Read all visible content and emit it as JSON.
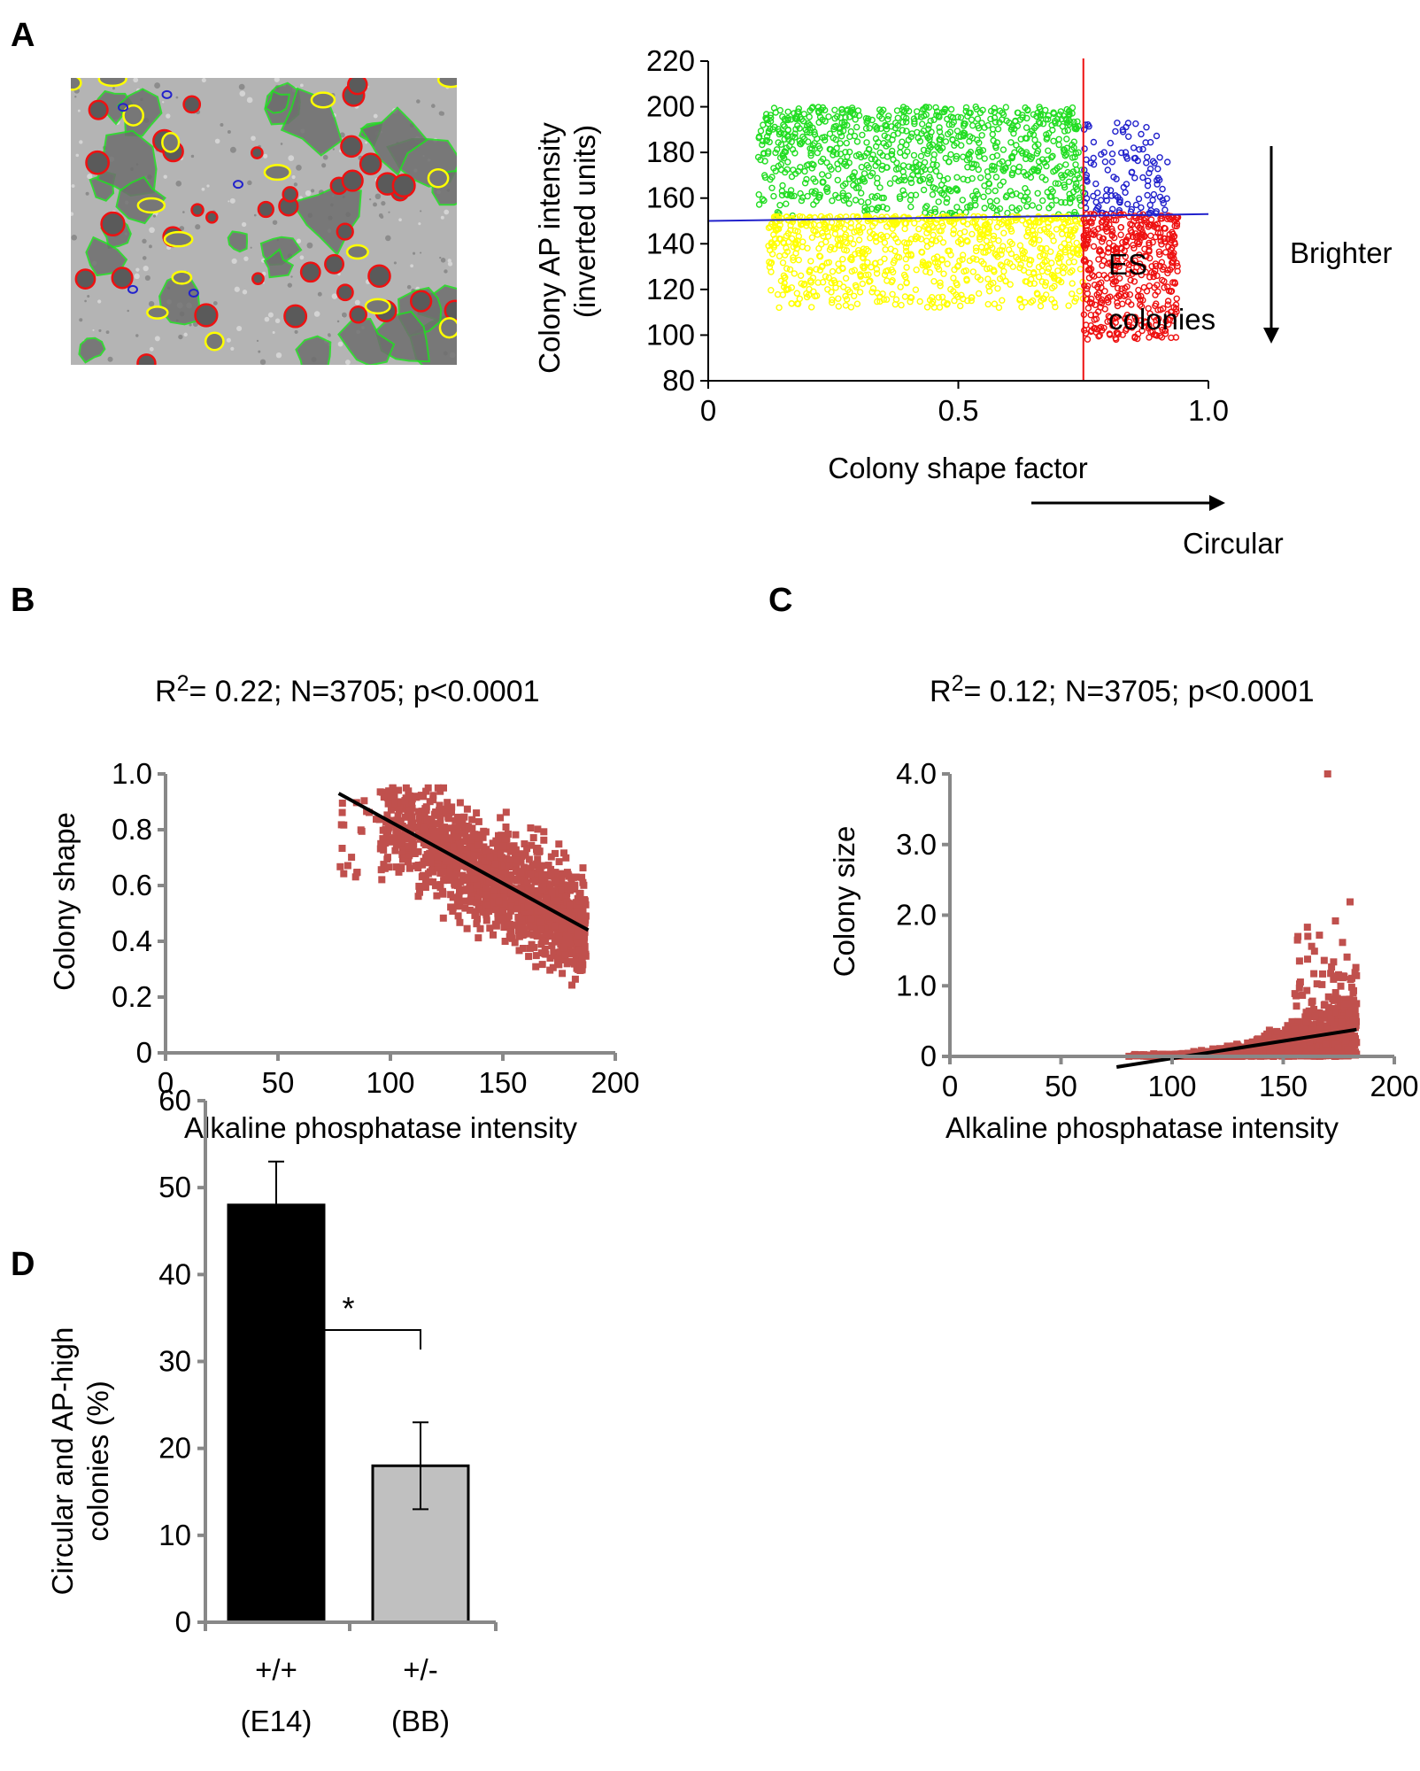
{
  "panel_labels": [
    "A",
    "B",
    "C",
    "D"
  ],
  "colors": {
    "green": "#22dd22",
    "yellow": "#ffff00",
    "blue": "#2222cc",
    "red": "#ee1111",
    "scatter_red": "#c0504d",
    "bar_black": "#000000",
    "bar_gray": "#c0c0c0"
  },
  "chart_data": [
    {
      "panel": "A",
      "type": "scatter",
      "xlabel": "Colony shape factor",
      "ylabel_line1": "Colony AP intensity",
      "ylabel_line2": "(inverted units)",
      "xlim": [
        0,
        1.0
      ],
      "ylim": [
        80,
        220
      ],
      "xticks": [
        "0",
        "0.5",
        "1.0"
      ],
      "yticks": [
        "80",
        "100",
        "120",
        "140",
        "160",
        "180",
        "200",
        "220"
      ],
      "shape_threshold": 0.75,
      "intensity_threshold_start": 150,
      "intensity_threshold_end": 153,
      "annotation_line1": "ES",
      "annotation_line2": "colonies",
      "right_arrow_label": "Brighter",
      "bottom_arrow_label": "Circular",
      "groups": [
        {
          "color": "green",
          "x_range": [
            0.1,
            0.75
          ],
          "y_range": [
            152,
            200
          ]
        },
        {
          "color": "yellow",
          "x_range": [
            0.12,
            0.75
          ],
          "y_range": [
            112,
            152
          ]
        },
        {
          "color": "blue",
          "x_range": [
            0.75,
            0.92
          ],
          "y_range": [
            153,
            195
          ]
        },
        {
          "color": "red",
          "x_range": [
            0.75,
            0.94
          ],
          "y_range": [
            98,
            153
          ]
        }
      ],
      "image": {
        "colonies": [
          {
            "type": "red"
          },
          {
            "type": "green"
          },
          {
            "type": "yellow"
          },
          {
            "type": "blue"
          }
        ]
      }
    },
    {
      "panel": "B",
      "type": "scatter",
      "title_prefix": "R",
      "title_sup": "2",
      "title_rest": "= 0.22; N=3705; p<0.0001",
      "xlabel": "Alkaline phosphatase intensity",
      "ylabel": "Colony shape",
      "xlim": [
        0,
        200
      ],
      "ylim": [
        0,
        1.0
      ],
      "xticks": [
        "0",
        "50",
        "100",
        "150",
        "200"
      ],
      "yticks": [
        "0",
        "0.2",
        "0.4",
        "0.6",
        "0.8",
        "1.0"
      ],
      "trend": {
        "x": [
          77,
          188
        ],
        "y": [
          0.93,
          0.44
        ]
      },
      "n": 3705
    },
    {
      "panel": "C",
      "type": "scatter",
      "title_prefix": "R",
      "title_sup": "2",
      "title_rest": "= 0.12; N=3705; p<0.0001",
      "xlabel": "Alkaline phosphatase intensity",
      "ylabel": "Colony size",
      "xlim": [
        0,
        200
      ],
      "ylim": [
        0,
        4.0
      ],
      "xticks": [
        "0",
        "50",
        "100",
        "150",
        "200"
      ],
      "yticks": [
        "0",
        "1.0",
        "2.0",
        "3.0",
        "4.0"
      ],
      "trend": {
        "x": [
          75,
          183
        ],
        "y": [
          -0.15,
          0.38
        ]
      },
      "n": 3705
    },
    {
      "panel": "D",
      "type": "bar",
      "ylabel_line1": "Circular and AP-high",
      "ylabel_line2": "colonies (%)",
      "ylim": [
        0,
        60
      ],
      "yticks": [
        "0",
        "10",
        "20",
        "30",
        "40",
        "50",
        "60"
      ],
      "categories": [
        "+/+",
        "+/-"
      ],
      "category_sub": [
        "(E14)",
        "(BB)"
      ],
      "values": [
        48,
        18
      ],
      "errors": [
        5,
        5
      ],
      "bar_colors": [
        "bar_black",
        "bar_gray"
      ],
      "significance": "*"
    }
  ]
}
